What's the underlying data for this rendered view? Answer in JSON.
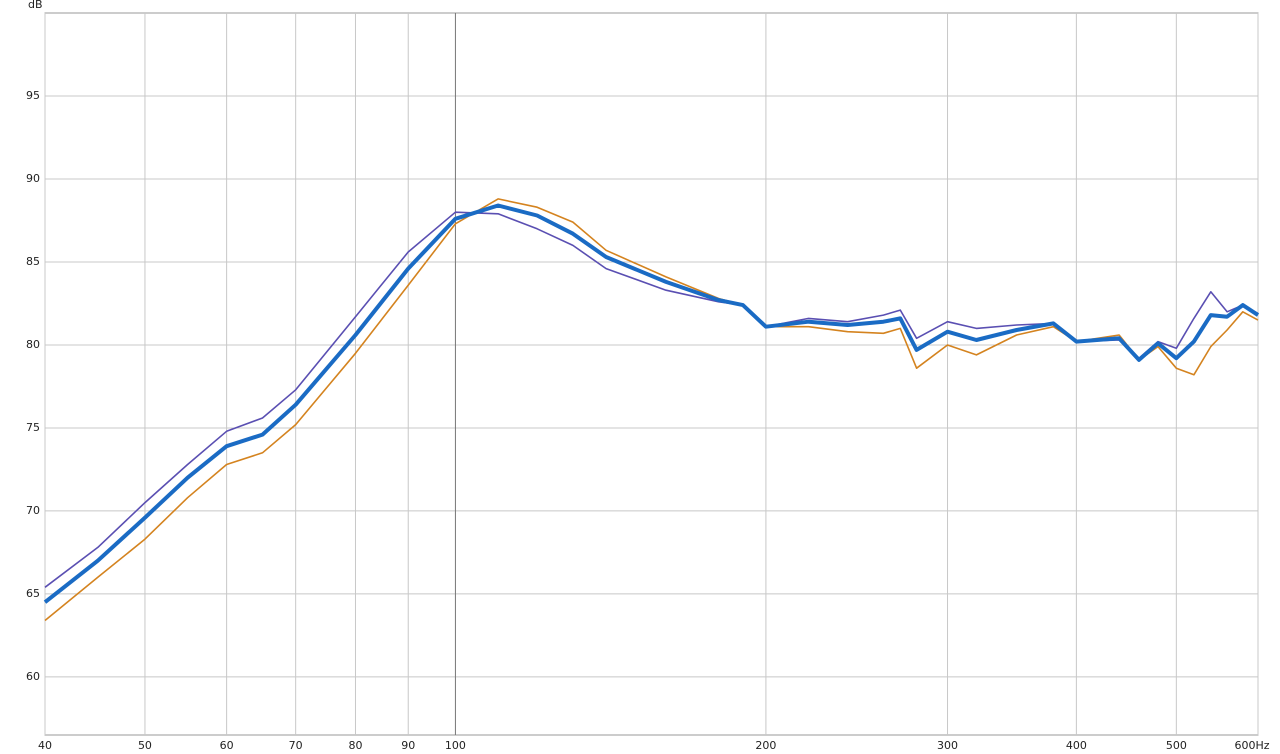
{
  "chart_data": {
    "type": "line",
    "y_label": "dB",
    "log_x": true,
    "grid": true,
    "x": [
      40,
      45,
      50,
      55,
      60,
      65,
      70,
      80,
      90,
      100,
      110,
      120,
      130,
      140,
      160,
      180,
      190,
      200,
      220,
      240,
      260,
      270,
      280,
      300,
      320,
      350,
      380,
      400,
      440,
      460,
      480,
      500,
      520,
      540,
      560,
      580,
      600
    ],
    "series": [
      {
        "color": "#d4831f",
        "values": [
          63.4,
          66.0,
          68.3,
          70.8,
          72.8,
          73.5,
          75.2,
          79.5,
          83.6,
          87.3,
          88.8,
          88.3,
          87.4,
          85.7,
          84.1,
          82.8,
          82.4,
          81.1,
          81.1,
          80.8,
          80.7,
          81.0,
          78.6,
          80.0,
          79.4,
          80.6,
          81.1,
          80.2,
          80.6,
          79.1,
          79.9,
          78.6,
          78.2,
          79.9,
          80.9,
          82.0,
          81.5
        ]
      },
      {
        "color": "#5a4fb2",
        "values": [
          65.4,
          67.8,
          70.5,
          72.8,
          74.8,
          75.6,
          77.3,
          81.7,
          85.6,
          88.0,
          87.9,
          87.0,
          86.0,
          84.6,
          83.3,
          82.6,
          82.4,
          81.1,
          81.6,
          81.4,
          81.8,
          82.1,
          80.4,
          81.4,
          81.0,
          81.2,
          81.3,
          80.2,
          80.3,
          79.2,
          80.2,
          79.8,
          81.6,
          83.2,
          82.0,
          82.4,
          81.9
        ]
      },
      {
        "color": "#1a6bc4",
        "width": 4,
        "values": [
          64.5,
          67.0,
          69.6,
          72.0,
          73.9,
          74.6,
          76.4,
          80.6,
          84.6,
          87.6,
          88.4,
          87.8,
          86.7,
          85.3,
          83.8,
          82.7,
          82.4,
          81.1,
          81.4,
          81.2,
          81.4,
          81.6,
          79.7,
          80.8,
          80.3,
          80.9,
          81.3,
          80.2,
          80.4,
          79.1,
          80.1,
          79.2,
          80.2,
          81.8,
          81.7,
          82.4,
          81.8
        ]
      }
    ],
    "xlim": [
      40,
      600
    ],
    "ylim": [
      56.5,
      100
    ],
    "xticks": [
      40,
      50,
      60,
      70,
      80,
      90,
      100,
      200,
      300,
      400,
      500,
      {
        "value": 600,
        "label": "600Hz"
      }
    ],
    "yticks": [
      60,
      65,
      70,
      75,
      80,
      85,
      90,
      95
    ]
  }
}
